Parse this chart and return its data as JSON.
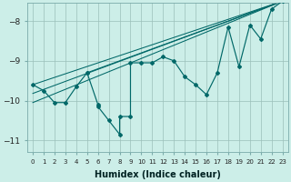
{
  "xlabel": "Humidex (Indice chaleur)",
  "bg_color": "#cceee8",
  "line_color": "#006868",
  "xlim": [
    -0.5,
    23.5
  ],
  "ylim": [
    -11.3,
    -7.55
  ],
  "yticks": [
    -11,
    -10,
    -9,
    -8
  ],
  "xticks": [
    0,
    1,
    2,
    3,
    4,
    5,
    6,
    7,
    8,
    9,
    10,
    11,
    12,
    13,
    14,
    15,
    16,
    17,
    18,
    19,
    20,
    21,
    22,
    23
  ],
  "main_x": [
    0,
    1,
    2,
    3,
    4,
    5,
    5,
    6,
    6,
    7,
    8,
    8,
    9,
    9,
    10,
    11,
    12,
    13,
    14,
    15,
    16,
    17,
    18,
    19,
    20,
    21,
    22,
    23
  ],
  "main_y": [
    -9.6,
    -9.75,
    -10.05,
    -10.05,
    -9.65,
    -9.3,
    -9.3,
    -10.1,
    -10.15,
    -10.5,
    -10.85,
    -10.4,
    -10.4,
    -9.05,
    -9.05,
    -9.05,
    -8.9,
    -9.0,
    -9.4,
    -9.6,
    -9.85,
    -9.3,
    -8.15,
    -9.15,
    -8.1,
    -8.45,
    -7.7,
    -7.5
  ],
  "trend_lines": [
    {
      "x": [
        0,
        23
      ],
      "y": [
        -9.6,
        -7.5
      ]
    },
    {
      "x": [
        0,
        23
      ],
      "y": [
        -9.82,
        -7.5
      ]
    },
    {
      "x": [
        0,
        23
      ],
      "y": [
        -10.05,
        -7.5
      ]
    },
    {
      "x": [
        5,
        23
      ],
      "y": [
        -9.3,
        -7.5
      ]
    }
  ]
}
